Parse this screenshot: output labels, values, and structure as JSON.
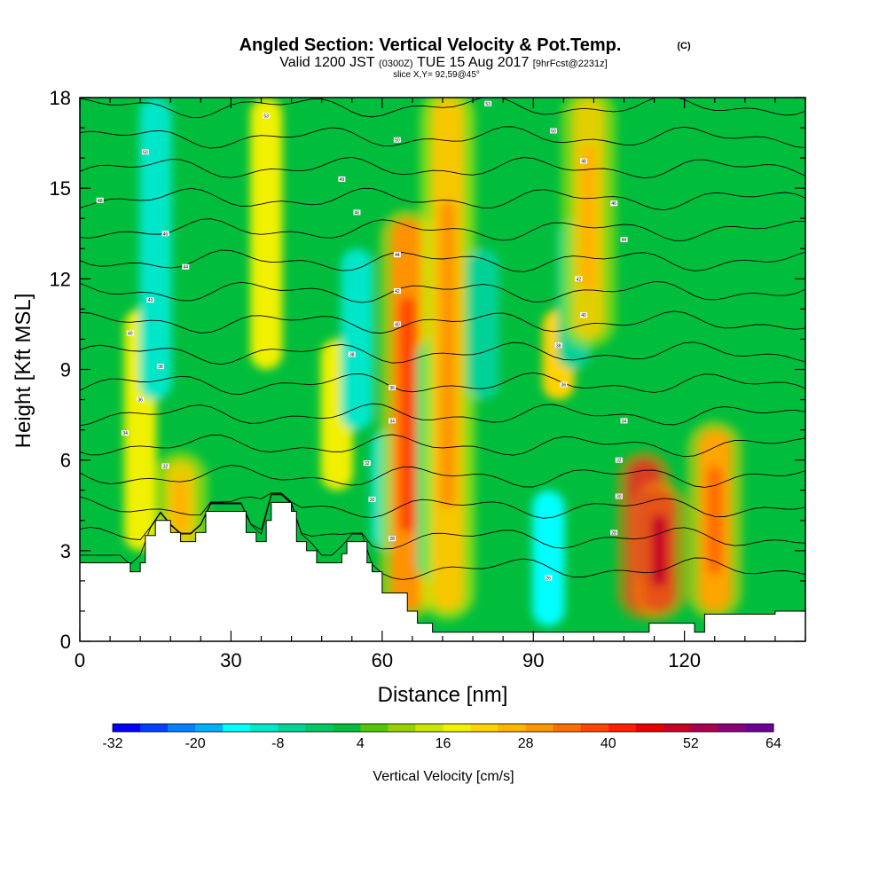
{
  "header": {
    "title": "Angled Section: Vertical Velocity & Pot.Temp.",
    "title_tag": "(C)",
    "valid_prefix": "Valid 1200 JST",
    "valid_utc": "(0300Z)",
    "valid_date": "TUE 15 Aug 2017",
    "forecast_tag": "[9hrFcst@2231z]",
    "slice": "slice X,Y= 92,59@45°"
  },
  "colorbar": {
    "label": "Vertical Velocity [cm/s]",
    "tick_labels": [
      "-32",
      "-20",
      "-8",
      "4",
      "16",
      "28",
      "40",
      "52",
      "64"
    ],
    "min": -32,
    "max": 64,
    "step": 4,
    "colors": [
      "#0000ff",
      "#0040ff",
      "#0080ff",
      "#00b0ff",
      "#00ffff",
      "#00e6c8",
      "#00d296",
      "#00c864",
      "#00be3c",
      "#50c800",
      "#96d200",
      "#c8e600",
      "#f0f000",
      "#ffd200",
      "#ffb400",
      "#ff9600",
      "#ff6e00",
      "#ff4600",
      "#ff1e00",
      "#e60000",
      "#c80028",
      "#aa0050",
      "#8c0078",
      "#6e0096"
    ]
  },
  "chart_data": {
    "type": "heatmap",
    "title": "Angled Section: Vertical Velocity & Pot.Temp.",
    "xlabel": "Distance [nm]",
    "ylabel": "Height [Kft MSL]",
    "xlim": [
      0,
      144
    ],
    "ylim": [
      0,
      18
    ],
    "x_ticks": [
      0,
      30,
      60,
      90,
      120
    ],
    "y_ticks": [
      0,
      3,
      6,
      9,
      12,
      15,
      18
    ],
    "grid": false,
    "filled_variable": "Vertical Velocity [cm/s]",
    "contour_variable": "Potential Temperature (C)",
    "velocity_features": [
      {
        "center_nm": 12,
        "z_bottom_kft": 3,
        "z_top_kft": 11,
        "value_cm_s": 16
      },
      {
        "center_nm": 15,
        "z_bottom_kft": 8,
        "z_top_kft": 18,
        "value_cm_s": -12
      },
      {
        "center_nm": 20,
        "z_bottom_kft": 3,
        "z_top_kft": 6,
        "value_cm_s": 24
      },
      {
        "center_nm": 37,
        "z_bottom_kft": 9,
        "z_top_kft": 18,
        "value_cm_s": 18
      },
      {
        "center_nm": 51,
        "z_bottom_kft": 5,
        "z_top_kft": 10,
        "value_cm_s": 18
      },
      {
        "center_nm": 55,
        "z_bottom_kft": 7,
        "z_top_kft": 13,
        "value_cm_s": -10
      },
      {
        "center_nm": 61,
        "z_bottom_kft": 3,
        "z_top_kft": 7,
        "value_cm_s": -12
      },
      {
        "center_nm": 65,
        "z_bottom_kft": 1,
        "z_top_kft": 14,
        "value_cm_s": 36
      },
      {
        "center_nm": 70,
        "z_bottom_kft": 2,
        "z_top_kft": 10,
        "value_cm_s": -8
      },
      {
        "center_nm": 73,
        "z_bottom_kft": 1,
        "z_top_kft": 18,
        "value_cm_s": 28
      },
      {
        "center_nm": 80,
        "z_bottom_kft": 8,
        "z_top_kft": 13,
        "value_cm_s": -8
      },
      {
        "center_nm": 93,
        "z_bottom_kft": 0.5,
        "z_top_kft": 5,
        "value_cm_s": -14
      },
      {
        "center_nm": 95,
        "z_bottom_kft": 8,
        "z_top_kft": 11,
        "value_cm_s": 20
      },
      {
        "center_nm": 98,
        "z_bottom_kft": 9,
        "z_top_kft": 14,
        "value_cm_s": -8
      },
      {
        "center_nm": 101,
        "z_bottom_kft": 10,
        "z_top_kft": 18,
        "value_cm_s": 24
      },
      {
        "center_nm": 112,
        "z_bottom_kft": 1,
        "z_top_kft": 6,
        "value_cm_s": 52
      },
      {
        "center_nm": 115,
        "z_bottom_kft": 1,
        "z_top_kft": 5,
        "value_cm_s": 48
      },
      {
        "center_nm": 126,
        "z_bottom_kft": 1,
        "z_top_kft": 7,
        "value_cm_s": 32
      }
    ],
    "terrain_profile": {
      "x_nm": [
        0,
        8,
        10,
        12,
        13,
        15,
        18,
        20,
        23,
        25,
        30,
        33,
        35,
        37,
        38,
        40,
        42,
        43,
        45,
        47,
        50,
        52,
        53,
        55,
        57,
        58,
        60,
        63,
        65,
        67,
        70,
        80,
        100,
        110,
        113,
        118,
        122,
        124,
        138,
        144
      ],
      "z_kft": [
        2.6,
        2.6,
        2.3,
        2.6,
        3.5,
        4.0,
        3.6,
        3.3,
        3.6,
        4.3,
        4.3,
        3.6,
        3.3,
        4.0,
        4.6,
        4.6,
        4.3,
        3.3,
        3.0,
        2.6,
        2.6,
        2.9,
        3.3,
        3.3,
        2.6,
        2.3,
        1.6,
        1.6,
        1.0,
        0.6,
        0.3,
        0.3,
        0.3,
        0.3,
        0.6,
        0.6,
        0.3,
        0.9,
        1.0,
        1.3
      ]
    },
    "isentrope_labels": [
      {
        "x_nm": 4,
        "z_kft": 14.6,
        "text": "48"
      },
      {
        "x_nm": 13,
        "z_kft": 16.2,
        "text": "50"
      },
      {
        "x_nm": 17,
        "z_kft": 13.5,
        "text": "46"
      },
      {
        "x_nm": 21,
        "z_kft": 12.4,
        "text": "44"
      },
      {
        "x_nm": 14,
        "z_kft": 11.3,
        "text": "43"
      },
      {
        "x_nm": 10,
        "z_kft": 10.2,
        "text": "40"
      },
      {
        "x_nm": 16,
        "z_kft": 9.1,
        "text": "38"
      },
      {
        "x_nm": 12,
        "z_kft": 8.0,
        "text": "36"
      },
      {
        "x_nm": 9,
        "z_kft": 6.9,
        "text": "34"
      },
      {
        "x_nm": 17,
        "z_kft": 5.8,
        "text": "32"
      },
      {
        "x_nm": 37,
        "z_kft": 17.4,
        "text": "53"
      },
      {
        "x_nm": 52,
        "z_kft": 15.3,
        "text": "49"
      },
      {
        "x_nm": 55,
        "z_kft": 14.2,
        "text": "46"
      },
      {
        "x_nm": 63,
        "z_kft": 16.6,
        "text": "50"
      },
      {
        "x_nm": 63,
        "z_kft": 12.8,
        "text": "44"
      },
      {
        "x_nm": 63,
        "z_kft": 11.6,
        "text": "42"
      },
      {
        "x_nm": 63,
        "z_kft": 10.5,
        "text": "40"
      },
      {
        "x_nm": 54,
        "z_kft": 9.5,
        "text": "38"
      },
      {
        "x_nm": 62,
        "z_kft": 8.4,
        "text": "36"
      },
      {
        "x_nm": 62,
        "z_kft": 7.3,
        "text": "34"
      },
      {
        "x_nm": 57,
        "z_kft": 5.9,
        "text": "32"
      },
      {
        "x_nm": 58,
        "z_kft": 4.7,
        "text": "30"
      },
      {
        "x_nm": 62,
        "z_kft": 3.4,
        "text": "28"
      },
      {
        "x_nm": 81,
        "z_kft": 17.8,
        "text": "53"
      },
      {
        "x_nm": 94,
        "z_kft": 16.9,
        "text": "50"
      },
      {
        "x_nm": 100,
        "z_kft": 15.9,
        "text": "48"
      },
      {
        "x_nm": 106,
        "z_kft": 14.5,
        "text": "46"
      },
      {
        "x_nm": 108,
        "z_kft": 13.3,
        "text": "44"
      },
      {
        "x_nm": 99,
        "z_kft": 12.0,
        "text": "42"
      },
      {
        "x_nm": 100,
        "z_kft": 10.8,
        "text": "40"
      },
      {
        "x_nm": 95,
        "z_kft": 9.8,
        "text": "38"
      },
      {
        "x_nm": 96,
        "z_kft": 8.5,
        "text": "36"
      },
      {
        "x_nm": 108,
        "z_kft": 7.3,
        "text": "34"
      },
      {
        "x_nm": 107,
        "z_kft": 6.0,
        "text": "32"
      },
      {
        "x_nm": 107,
        "z_kft": 4.8,
        "text": "30"
      },
      {
        "x_nm": 106,
        "z_kft": 3.6,
        "text": "28"
      },
      {
        "x_nm": 93,
        "z_kft": 2.1,
        "text": "26"
      }
    ]
  }
}
